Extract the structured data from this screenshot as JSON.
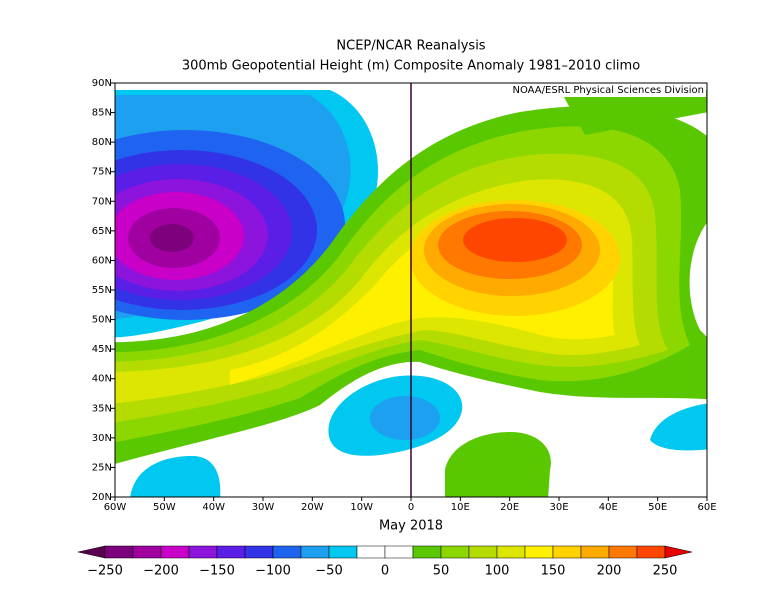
{
  "header": {
    "title": "NCEP/NCAR Reanalysis",
    "subtitle": "300mb Geopotential Height (m) Composite Anomaly 1981–2010 climo",
    "credit": "NOAA/ESRL Physical Sciences Division",
    "period": "May 2018"
  },
  "map": {
    "lon_labels": [
      "60W",
      "50W",
      "40W",
      "30W",
      "20W",
      "10W",
      "0",
      "10E",
      "20E",
      "30E",
      "40E",
      "50E",
      "60E"
    ],
    "lat_labels": [
      "90N",
      "85N",
      "80N",
      "75N",
      "70N",
      "65N",
      "60N",
      "55N",
      "50N",
      "45N",
      "40N",
      "35N",
      "30N",
      "25N",
      "20N"
    ]
  },
  "colorbar": {
    "colors": [
      "#5a0050",
      "#7d007d",
      "#a000a0",
      "#c800c8",
      "#8c14dc",
      "#5a1ee6",
      "#3232e6",
      "#1e64f0",
      "#1ea0f0",
      "#00c8f0",
      "#ffffff",
      "#ffffff",
      "#5ac800",
      "#8cd700",
      "#b4dc00",
      "#dce600",
      "#fff000",
      "#ffd200",
      "#ffaa00",
      "#ff7800",
      "#ff4600",
      "#e60000"
    ],
    "ticks": [
      {
        "value": -250,
        "label": "−250"
      },
      {
        "value": -200,
        "label": "−200"
      },
      {
        "value": -150,
        "label": "−150"
      },
      {
        "value": -100,
        "label": "−100"
      },
      {
        "value": -50,
        "label": "−50"
      },
      0,
      50,
      100,
      150,
      200,
      250
    ]
  }
}
